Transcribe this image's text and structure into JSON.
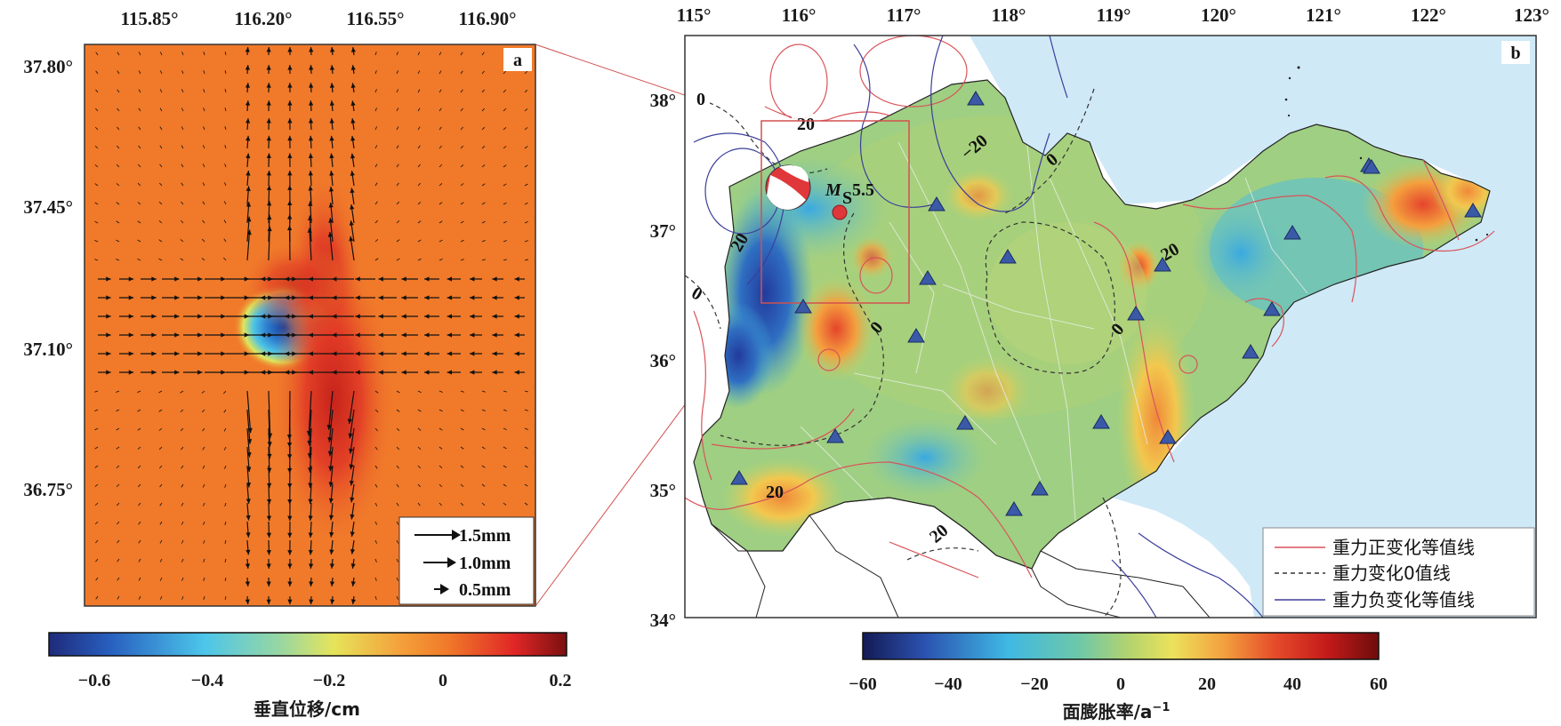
{
  "panel_a": {
    "tag": "a",
    "x_ticks": [
      "115.85°",
      "116.20°",
      "116.55°",
      "116.90°"
    ],
    "y_ticks": [
      "37.80°",
      "37.45°",
      "37.10°",
      "36.75°"
    ],
    "scale_legend": [
      {
        "label": "1.5mm",
        "value": 1.5
      },
      {
        "label": "1.0mm",
        "value": 1.0
      },
      {
        "label": "0.5mm",
        "value": 0.5
      }
    ],
    "colorbar": {
      "ticks": [
        "−0.6",
        "−0.4",
        "−0.2",
        "0",
        "0.2"
      ],
      "label": "垂直位移/cm",
      "range": [
        -0.7,
        0.21
      ]
    }
  },
  "panel_b": {
    "tag": "b",
    "x_ticks": [
      "115°",
      "116°",
      "117°",
      "118°",
      "119°",
      "120°",
      "121°",
      "122°",
      "123°"
    ],
    "y_ticks": [
      "38°",
      "37°",
      "36°",
      "35°",
      "34°"
    ],
    "contour_labels": [
      "0",
      "20",
      "−20",
      "0",
      "20",
      "0",
      "0",
      "0",
      "20",
      "20"
    ],
    "earthquake": {
      "mag_symbol": "M",
      "mag_sub": "S",
      "mag_value": "5.5"
    },
    "legend": [
      {
        "label": "重力正变化等值线",
        "color": "#d9545a",
        "style": "solid"
      },
      {
        "label": "重力变化0值线",
        "color": "#333333",
        "style": "dashed"
      },
      {
        "label": "重力负变化等值线",
        "color": "#3b3f9a",
        "style": "solid"
      }
    ],
    "colorbar": {
      "ticks": [
        "−60",
        "−40",
        "−20",
        "0",
        "20",
        "40",
        "60"
      ],
      "label": "面膨胀率/a",
      "label_sup": "−1",
      "range": [
        -60,
        60
      ]
    }
  },
  "colors": {
    "background_orange": "#f07a2a",
    "sea": "#cfe9f7",
    "frame": "#333333",
    "link_lines": "#d25050",
    "triangle": "#3a5aa8",
    "epicenter": "#e0383a"
  }
}
